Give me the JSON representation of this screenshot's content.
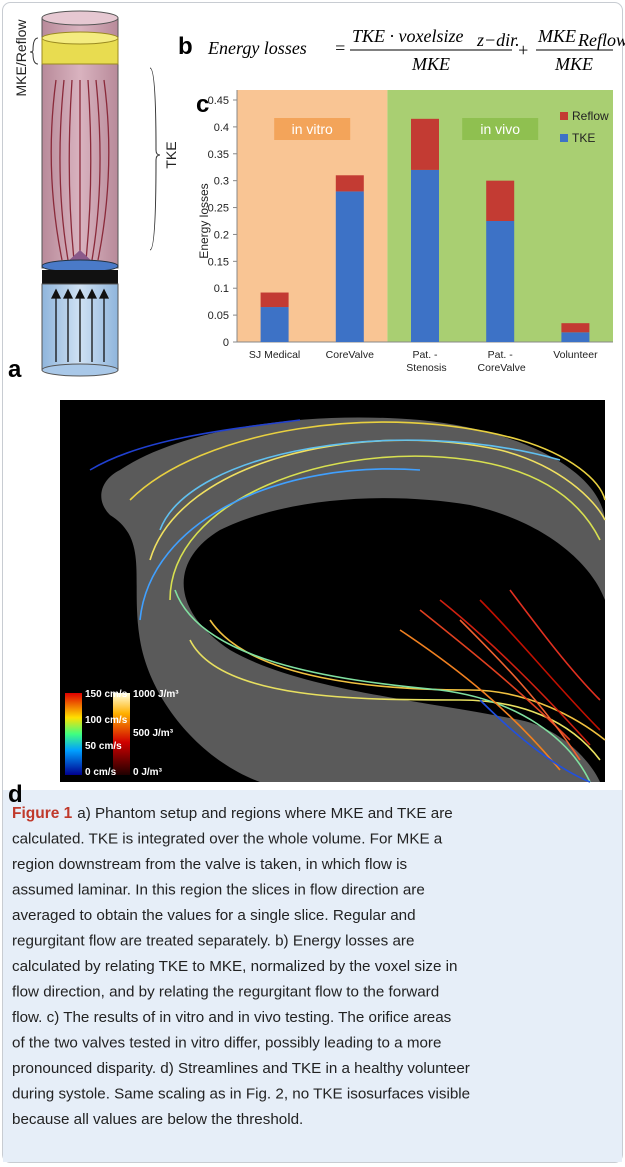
{
  "panels": {
    "a": "a",
    "b": "b",
    "c": "c",
    "d": "d"
  },
  "diagram": {
    "mke_label": "MKE/Reflow",
    "tke_label": "TKE"
  },
  "formula": {
    "lhs": "Energy losses",
    "equals": "=",
    "term1_numerator": "TKE · voxelsize",
    "term1_subscript": "z−dir.",
    "term1_denominator": "MKE",
    "plus": "+",
    "term2_numerator": "MKE",
    "term2_subscript": "Reflow",
    "term2_denominator": "MKE"
  },
  "chart_data": {
    "type": "stacked_bar",
    "ylabel": "Energy losses",
    "categories": [
      "SJ Medical",
      "CoreValve",
      "Pat. - Stenosis",
      "Pat. - CoreValve",
      "Volunteer"
    ],
    "series": [
      {
        "name": "TKE",
        "color": "#3d72c6",
        "values": [
          0.065,
          0.28,
          0.32,
          0.225,
          0.018
        ]
      },
      {
        "name": "Reflow",
        "color": "#c33b33",
        "values": [
          0.027,
          0.03,
          0.095,
          0.075,
          0.017
        ]
      }
    ],
    "regions": [
      {
        "label": "in vitro",
        "color": "#f9c594",
        "label_color": "#f3a45a",
        "categories": [
          "SJ Medical",
          "CoreValve"
        ]
      },
      {
        "label": "in vivo",
        "color": "#a9cf72",
        "label_color": "#8fc050",
        "categories": [
          "Pat. - Stenosis",
          "Pat. - CoreValve",
          "Volunteer"
        ]
      }
    ],
    "ylim": [
      0,
      0.45
    ],
    "yticks": [
      0,
      0.05,
      0.1,
      0.15,
      0.2,
      0.25,
      0.3,
      0.35,
      0.4,
      0.45
    ],
    "legend": "top-right"
  },
  "image": {
    "velocity_scale": [
      "150 cm/s",
      "100 cm/s",
      "50 cm/s",
      "0 cm/s"
    ],
    "tke_scale": [
      "1000 J/m³",
      "500 J/m³",
      "0 J/m³"
    ]
  },
  "caption": {
    "label": "Figure 1",
    "lines": [
      "a) Phantom setup and regions where MKE and TKE are",
      "calculated. TKE is integrated over the whole volume. For MKE a",
      "region downstream from the valve is taken, in which flow is",
      "assumed laminar. In this region the slices in flow direction are",
      "averaged to obtain the values for a single slice. Regular and",
      "regurgitant flow are treated separately. b) Energy losses are",
      "calculated by relating TKE to MKE, normalized by the voxel size in",
      "flow direction, and by relating the regurgitant flow to the forward",
      "flow. c) The results of in vitro and in vivo testing. The orifice areas",
      "of the two valves tested in vitro differ, possibly leading to a more",
      "pronounced disparity. d) Streamlines and TKE in a healthy volunteer",
      "during systole. Same scaling as in Fig. 2, no TKE isosurfaces visible",
      "because all values are below the threshold."
    ]
  }
}
